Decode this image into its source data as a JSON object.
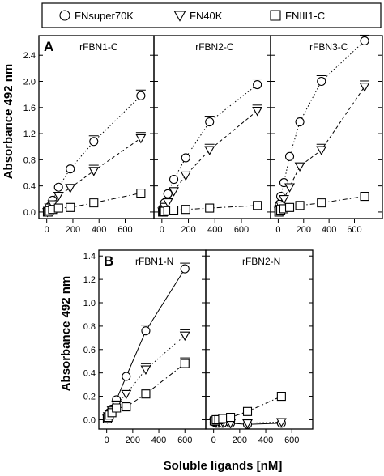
{
  "legend": {
    "placement": "top",
    "entries": [
      {
        "label": "FNsuper70K",
        "marker": "circle"
      },
      {
        "label": "FN40K",
        "marker": "triangle-down"
      },
      {
        "label": "FNIII1-C",
        "marker": "square"
      }
    ]
  },
  "chart_data": [
    {
      "type": "scatter",
      "panel_letter": "A",
      "ylabel": "Absorbance 492 nm",
      "ylim": [
        -0.1,
        2.7
      ],
      "yticks": [
        0.0,
        0.4,
        0.8,
        1.2,
        1.6,
        2.0,
        2.4
      ],
      "xlim": [
        -60,
        820
      ],
      "xticks": [
        0,
        200,
        400,
        600
      ],
      "subplots": [
        {
          "title": "rFBN1-C",
          "series": [
            {
              "name": "FNsuper70K",
              "marker": "circle",
              "fit": "dotted",
              "points": [
                [
                  5,
                  0.01
                ],
                [
                  10,
                  0.03
                ],
                [
                  20,
                  0.08
                ],
                [
                  45,
                  0.18
                ],
                [
                  90,
                  0.38
                ],
                [
                  180,
                  0.66
                ],
                [
                  360,
                  1.08
                ],
                [
                  720,
                  1.78
                ]
              ]
            },
            {
              "name": "FN40K",
              "marker": "triangle-down",
              "fit": "short-dash",
              "points": [
                [
                  5,
                  0.0
                ],
                [
                  10,
                  0.02
                ],
                [
                  20,
                  0.07
                ],
                [
                  45,
                  0.12
                ],
                [
                  90,
                  0.25
                ],
                [
                  180,
                  0.37
                ],
                [
                  360,
                  0.63
                ],
                [
                  720,
                  1.13
                ]
              ]
            },
            {
              "name": "FNIII1-C",
              "marker": "square",
              "fit": "dash-dot",
              "points": [
                [
                  5,
                  0.0
                ],
                [
                  10,
                  0.0
                ],
                [
                  20,
                  0.02
                ],
                [
                  45,
                  0.04
                ],
                [
                  90,
                  0.06
                ],
                [
                  180,
                  0.07
                ],
                [
                  360,
                  0.14
                ],
                [
                  720,
                  0.29
                ]
              ]
            }
          ]
        },
        {
          "title": "rFBN2-C",
          "series": [
            {
              "name": "FNsuper70K",
              "marker": "circle",
              "fit": "dotted",
              "points": [
                [
                  5,
                  0.03
                ],
                [
                  10,
                  0.07
                ],
                [
                  20,
                  0.14
                ],
                [
                  45,
                  0.28
                ],
                [
                  90,
                  0.5
                ],
                [
                  180,
                  0.83
                ],
                [
                  360,
                  1.38
                ],
                [
                  720,
                  1.95
                ]
              ]
            },
            {
              "name": "FN40K",
              "marker": "triangle-down",
              "fit": "short-dash",
              "points": [
                [
                  5,
                  0.01
                ],
                [
                  10,
                  0.03
                ],
                [
                  20,
                  0.08
                ],
                [
                  45,
                  0.15
                ],
                [
                  90,
                  0.32
                ],
                [
                  180,
                  0.56
                ],
                [
                  360,
                  0.95
                ],
                [
                  720,
                  1.55
                ]
              ]
            },
            {
              "name": "FNIII1-C",
              "marker": "square",
              "fit": "dash-dot",
              "points": [
                [
                  5,
                  0.0
                ],
                [
                  10,
                  0.0
                ],
                [
                  20,
                  0.01
                ],
                [
                  45,
                  0.02
                ],
                [
                  90,
                  0.03
                ],
                [
                  180,
                  0.04
                ],
                [
                  360,
                  0.06
                ],
                [
                  720,
                  0.1
                ]
              ]
            }
          ]
        },
        {
          "title": "rFBN3-C",
          "series": [
            {
              "name": "FNsuper70K",
              "marker": "circle",
              "fit": "dotted",
              "points": [
                [
                  5,
                  0.05
                ],
                [
                  10,
                  0.12
                ],
                [
                  20,
                  0.24
                ],
                [
                  45,
                  0.45
                ],
                [
                  90,
                  0.85
                ],
                [
                  170,
                  1.38
                ],
                [
                  340,
                  2.0
                ],
                [
                  680,
                  2.62
                ]
              ]
            },
            {
              "name": "FN40K",
              "marker": "triangle-down",
              "fit": "short-dash",
              "points": [
                [
                  5,
                  0.02
                ],
                [
                  10,
                  0.05
                ],
                [
                  20,
                  0.1
                ],
                [
                  45,
                  0.2
                ],
                [
                  90,
                  0.38
                ],
                [
                  170,
                  0.7
                ],
                [
                  340,
                  0.95
                ],
                [
                  680,
                  1.92
                ]
              ]
            },
            {
              "name": "FNIII1-C",
              "marker": "square",
              "fit": "dash-dot",
              "points": [
                [
                  5,
                  0.0
                ],
                [
                  10,
                  0.02
                ],
                [
                  20,
                  0.03
                ],
                [
                  45,
                  0.05
                ],
                [
                  90,
                  0.07
                ],
                [
                  170,
                  0.1
                ],
                [
                  340,
                  0.14
                ],
                [
                  680,
                  0.24
                ]
              ]
            }
          ]
        }
      ]
    },
    {
      "type": "scatter",
      "panel_letter": "B",
      "xlabel": "Soluble ligands [nM]",
      "ylabel": "Absorbance 492 nm",
      "ylim": [
        -0.08,
        1.45
      ],
      "yticks": [
        0.0,
        0.2,
        0.4,
        0.6,
        0.8,
        1.0,
        1.2,
        1.4
      ],
      "xlim": [
        -60,
        760
      ],
      "xticks": [
        0,
        200,
        400,
        600
      ],
      "subplots": [
        {
          "title": "rFBN1-N",
          "series": [
            {
              "name": "FNsuper70K",
              "marker": "circle",
              "fit": "solid",
              "points": [
                [
                  5,
                  0.02
                ],
                [
                  10,
                  0.04
                ],
                [
                  20,
                  0.06
                ],
                [
                  40,
                  0.09
                ],
                [
                  75,
                  0.17
                ],
                [
                  150,
                  0.37
                ],
                [
                  300,
                  0.76
                ],
                [
                  600,
                  1.29
                ]
              ]
            },
            {
              "name": "FN40K",
              "marker": "triangle-down",
              "fit": "dotted",
              "points": [
                [
                  5,
                  0.01
                ],
                [
                  10,
                  0.03
                ],
                [
                  20,
                  0.05
                ],
                [
                  40,
                  0.08
                ],
                [
                  75,
                  0.13
                ],
                [
                  150,
                  0.22
                ],
                [
                  300,
                  0.43
                ],
                [
                  600,
                  0.72
                ]
              ]
            },
            {
              "name": "FNIII1-C",
              "marker": "square",
              "fit": "dash-dot",
              "points": [
                [
                  5,
                  0.01
                ],
                [
                  10,
                  0.02
                ],
                [
                  20,
                  0.04
                ],
                [
                  40,
                  0.06
                ],
                [
                  75,
                  0.1
                ],
                [
                  150,
                  0.11
                ],
                [
                  300,
                  0.22
                ],
                [
                  600,
                  0.48
                ]
              ]
            }
          ]
        },
        {
          "title": "rFBN2-N",
          "series": [
            {
              "name": "FNsuper70K",
              "marker": "circle",
              "fit": "solid",
              "points": [
                [
                  5,
                  -0.02
                ],
                [
                  10,
                  -0.02
                ],
                [
                  20,
                  -0.03
                ],
                [
                  40,
                  -0.03
                ],
                [
                  70,
                  -0.03
                ],
                [
                  130,
                  -0.03
                ],
                [
                  260,
                  -0.04
                ],
                [
                  520,
                  -0.03
                ]
              ]
            },
            {
              "name": "FN40K",
              "marker": "triangle-down",
              "fit": "dotted",
              "points": [
                [
                  5,
                  -0.02
                ],
                [
                  10,
                  -0.02
                ],
                [
                  20,
                  -0.02
                ],
                [
                  40,
                  -0.02
                ],
                [
                  70,
                  -0.02
                ],
                [
                  130,
                  -0.03
                ],
                [
                  260,
                  -0.03
                ],
                [
                  520,
                  -0.02
                ]
              ]
            },
            {
              "name": "FNIII1-C",
              "marker": "square",
              "fit": "dash-dot",
              "points": [
                [
                  5,
                  -0.01
                ],
                [
                  10,
                  -0.01
                ],
                [
                  20,
                  0.0
                ],
                [
                  40,
                  0.0
                ],
                [
                  70,
                  0.01
                ],
                [
                  130,
                  0.02
                ],
                [
                  260,
                  0.07
                ],
                [
                  520,
                  0.2
                ]
              ]
            }
          ]
        }
      ]
    }
  ]
}
